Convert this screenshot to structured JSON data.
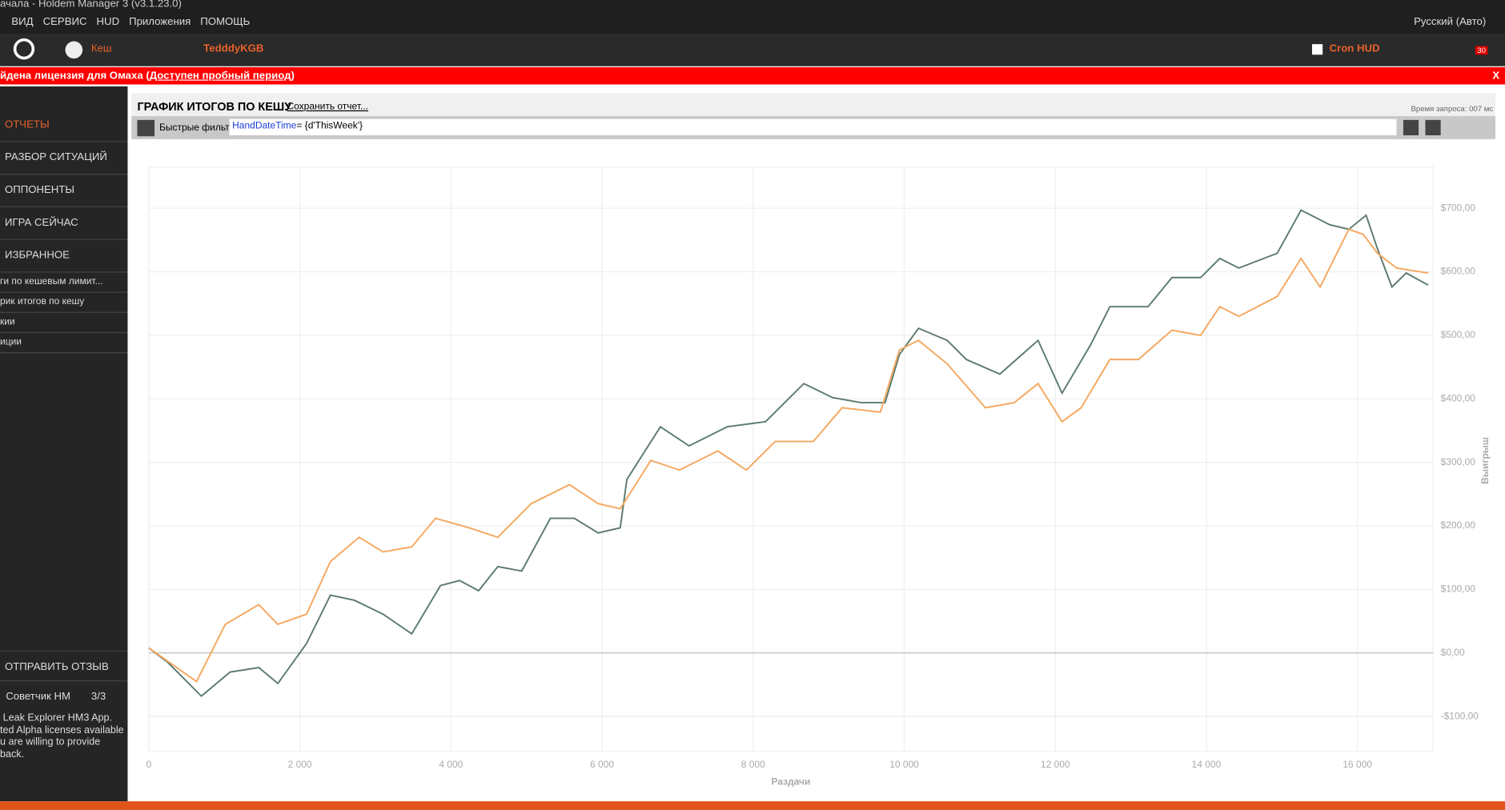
{
  "window": {
    "title": "ачала - Holdem Manager 3 (v3.1.23.0)",
    "menu": [
      "ВИД",
      "СЕРВИС",
      "HUD",
      "Приложения",
      "ПОМОЩЬ"
    ],
    "language": "Русский (Авто)"
  },
  "toolbar": {
    "cash": "Кеш",
    "player": "TedddyKGB",
    "hud": "Cron HUD",
    "badge": "30"
  },
  "banner": {
    "text": "йдена лицензия для Омаха (",
    "link": "Доступен пробный период",
    "end": ")",
    "close": "X"
  },
  "sidebar": {
    "items": [
      "ОТЧЕТЫ",
      "РАЗБОР СИТУАЦИЙ",
      "ОППОНЕНТЫ",
      "ИГРА СЕЙЧАС",
      "ИЗБРАННОЕ"
    ],
    "subitems": [
      "ги по кешевым лимит...",
      "рик итогов по кешу",
      "кии",
      "иции"
    ],
    "feedback": "ОТПРАВИТЬ ОТЗЫВ",
    "advisor": "Советчик HM",
    "page": "3/3",
    "tip": [
      "Leak Explorer HM3 App.",
      "ted Alpha licenses available",
      "u are willing to provide",
      "back."
    ]
  },
  "report": {
    "title": "ГРАФИК ИТОГОВ ПО КЕШУ",
    "save": "Сохранить отчет...",
    "query_time": "Время запроса: 007 мс",
    "filter_label": "Быстрые фильт",
    "filter_field": "HandDateTime",
    "filter_expr": "= {d'ThisWeek'}"
  },
  "chart_data": {
    "type": "line",
    "x_label": "Раздачи",
    "y_label": "Выигрыш",
    "xlim": [
      0,
      17000
    ],
    "ylim": [
      -155,
      765
    ],
    "xticks": [
      0,
      {
        "value": 2000,
        "label": "2 000"
      },
      {
        "value": 4000,
        "label": "4 000"
      },
      {
        "value": 6000,
        "label": "6 000"
      },
      {
        "value": 8000,
        "label": "8 000"
      },
      {
        "value": 10000,
        "label": "10 000"
      },
      {
        "value": 12000,
        "label": "12 000"
      },
      {
        "value": 14000,
        "label": "14 000"
      },
      {
        "value": 16000,
        "label": "16 000"
      }
    ],
    "yticks": [
      {
        "value": -100,
        "label": "-$100,00"
      },
      {
        "value": 0,
        "label": "$0,00"
      },
      {
        "value": 100,
        "label": "$100,00"
      },
      {
        "value": 200,
        "label": "$200,00"
      },
      {
        "value": 300,
        "label": "$300,00"
      },
      {
        "value": 400,
        "label": "$400,00"
      },
      {
        "value": 500,
        "label": "$500,00"
      },
      {
        "value": 600,
        "label": "$600,00"
      },
      {
        "value": 700,
        "label": "$700,00"
      }
    ],
    "grid": true,
    "series": [
      {
        "color": "#5b7a6c",
        "x": [
          0,
          253,
          696,
          1076,
          1456,
          1709,
          2089,
          2405,
          2722,
          3101,
          3481,
          3861,
          4114,
          4367,
          4620,
          4937,
          5316,
          5633,
          5949,
          6241,
          6329,
          6772,
          7152,
          7658,
          8165,
          8671,
          9051,
          9430,
          9747,
          9937,
          10190,
          10570,
          10823,
          11266,
          11772,
          12089,
          12468,
          12722,
          13228,
          13544,
          13924,
          14177,
          14430,
          14937,
          15253,
          15633,
          15886,
          16114,
          16266,
          16456,
          16646,
          16937
        ],
        "values": [
          8,
          -15,
          -68,
          -30,
          -23,
          -48,
          15,
          91,
          83,
          61,
          30,
          106,
          114,
          98,
          136,
          129,
          212,
          212,
          189,
          197,
          273,
          356,
          326,
          356,
          364,
          424,
          402,
          394,
          394,
          470,
          511,
          492,
          462,
          439,
          492,
          409,
          485,
          545,
          545,
          591,
          591,
          621,
          606,
          629,
          697,
          674,
          667,
          689,
          636,
          576,
          598,
          579
        ]
      },
      {
        "color": "#f5a75e",
        "x": [
          0,
          633,
          1013,
          1456,
          1709,
          2089,
          2405,
          2785,
          3101,
          3481,
          3797,
          4241,
          4620,
          5063,
          5570,
          5949,
          6241,
          6646,
          7025,
          7532,
          7911,
          8291,
          8797,
          9177,
          9684,
          9937,
          10190,
          10570,
          11076,
          11456,
          11772,
          12089,
          12342,
          12722,
          13101,
          13544,
          13924,
          14177,
          14430,
          14937,
          15253,
          15506,
          15886,
          16076,
          16266,
          16519,
          16937
        ],
        "values": [
          8,
          -45,
          45,
          76,
          45,
          61,
          144,
          182,
          159,
          167,
          212,
          197,
          182,
          235,
          265,
          235,
          227,
          303,
          288,
          318,
          288,
          333,
          333,
          386,
          379,
          477,
          492,
          455,
          386,
          394,
          424,
          364,
          386,
          462,
          462,
          508,
          500,
          545,
          530,
          561,
          621,
          576,
          667,
          659,
          629,
          606,
          598
        ]
      }
    ]
  }
}
